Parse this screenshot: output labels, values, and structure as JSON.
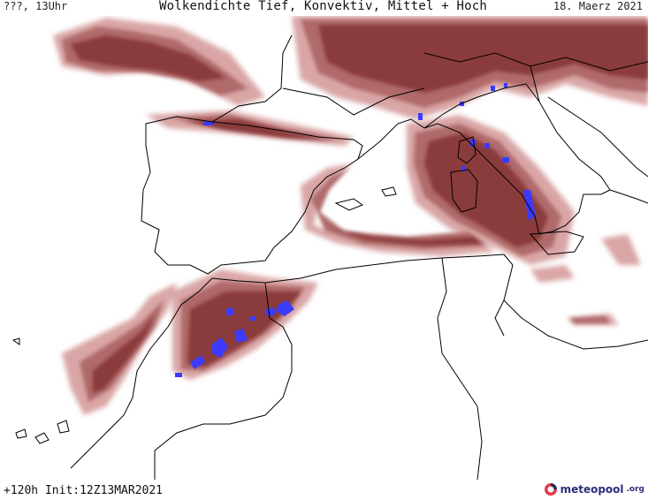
{
  "header": {
    "run_label": "???, 13Uhr",
    "title": "Wolkendichte  Tief, Konvektiv, Mittel + Hoch",
    "valid_date": "18. Maerz 2021"
  },
  "footer": {
    "init_label": "+120h  Init:12Z13MAR2021",
    "logo_text": "meteopool",
    "logo_tld": ".org"
  },
  "map": {
    "region": "Western Mediterranean, Iberia, North Africa, Italy",
    "cloud_color_dark": "#8a3b3b",
    "cloud_color_mid": "#b06b6b",
    "cloud_color_light": "#d9a5a5",
    "convective_color": "#3b3bff",
    "coastline_color": "#000000",
    "logo_colors": [
      "#e63946",
      "#1d3557"
    ]
  }
}
